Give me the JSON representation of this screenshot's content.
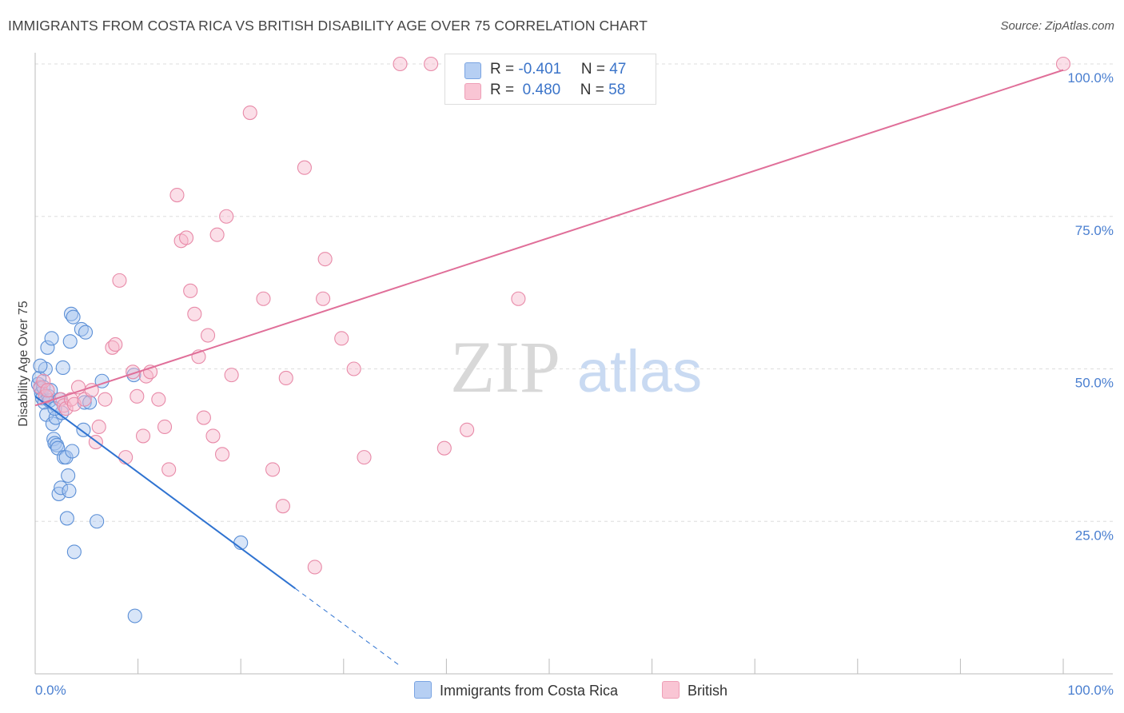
{
  "title": "IMMIGRANTS FROM COSTA RICA VS BRITISH DISABILITY AGE OVER 75 CORRELATION CHART",
  "source": "Source: ZipAtlas.com",
  "watermark": {
    "zip": "ZIP",
    "atlas": "atlas"
  },
  "legend_top": [
    {
      "r_label": "R = ",
      "r_value": "-0.401",
      "n_label": "N = ",
      "n_value": "47"
    },
    {
      "r_label": "R = ",
      "r_value": " 0.480",
      "n_label": "N = ",
      "n_value": "58"
    }
  ],
  "legend_bottom": [
    "Immigrants from Costa Rica",
    "British"
  ],
  "colors": {
    "blue_fill": "#a9c6f0",
    "blue_stroke": "#5b8fd6",
    "blue_line": "#2f73d1",
    "pink_fill": "#f6b8cb",
    "pink_stroke": "#e88aa8",
    "pink_line": "#e06f99",
    "tick_text": "#4a7fd0",
    "grid": "#dddddd"
  },
  "chart_data": {
    "type": "scatter",
    "title": "IMMIGRANTS FROM COSTA RICA VS BRITISH DISABILITY AGE OVER 75 CORRELATION CHART",
    "xlabel": "",
    "ylabel": "Disability Age Over 75",
    "xlim": [
      0,
      100
    ],
    "ylim": [
      0,
      100
    ],
    "x_tick_labels": [
      "0.0%",
      "100.0%"
    ],
    "y_tick_labels": [
      "25.0%",
      "50.0%",
      "75.0%",
      "100.0%"
    ],
    "y_ticks": [
      25,
      50,
      75,
      100
    ],
    "grid": true,
    "series": [
      {
        "name": "Immigrants from Costa Rica",
        "color": "blue",
        "R": -0.401,
        "N": 47,
        "trend": {
          "x0": 0,
          "y0": 45.5,
          "x1": 25.3,
          "y1": 14.0,
          "dash_to_x": 35.5
        },
        "points": [
          [
            0.3,
            47.5
          ],
          [
            0.4,
            48.5
          ],
          [
            0.5,
            46.8
          ],
          [
            0.6,
            46.0
          ],
          [
            0.7,
            45.2
          ],
          [
            0.8,
            47.0
          ],
          [
            0.9,
            44.5
          ],
          [
            1.0,
            50.0
          ],
          [
            1.1,
            42.5
          ],
          [
            1.2,
            53.5
          ],
          [
            1.3,
            45.5
          ],
          [
            1.4,
            44.8
          ],
          [
            1.5,
            46.5
          ],
          [
            1.6,
            55.0
          ],
          [
            1.7,
            41.0
          ],
          [
            1.8,
            38.5
          ],
          [
            1.9,
            37.8
          ],
          [
            2.0,
            42.0
          ],
          [
            2.1,
            37.5
          ],
          [
            2.2,
            37.0
          ],
          [
            2.3,
            29.5
          ],
          [
            2.4,
            45.0
          ],
          [
            2.5,
            30.5
          ],
          [
            2.6,
            42.8
          ],
          [
            2.7,
            50.2
          ],
          [
            2.8,
            35.5
          ],
          [
            3.0,
            35.5
          ],
          [
            3.1,
            25.5
          ],
          [
            3.2,
            32.5
          ],
          [
            3.3,
            30.0
          ],
          [
            3.4,
            54.5
          ],
          [
            3.5,
            59.0
          ],
          [
            3.6,
            36.5
          ],
          [
            3.7,
            58.5
          ],
          [
            3.8,
            20.0
          ],
          [
            4.5,
            56.5
          ],
          [
            4.7,
            40.0
          ],
          [
            4.8,
            44.5
          ],
          [
            4.9,
            56.0
          ],
          [
            5.3,
            44.5
          ],
          [
            6.0,
            25.0
          ],
          [
            6.5,
            48.0
          ],
          [
            9.6,
            49.0
          ],
          [
            9.7,
            9.5
          ],
          [
            20.0,
            21.5
          ],
          [
            0.5,
            50.5
          ],
          [
            1.9,
            43.5
          ]
        ]
      },
      {
        "name": "British",
        "color": "pink",
        "R": 0.48,
        "N": 58,
        "trend": {
          "x0": 0,
          "y0": 44.0,
          "x1": 100,
          "y1": 99.0
        },
        "points": [
          [
            0.5,
            47.0
          ],
          [
            0.8,
            48.0
          ],
          [
            1.0,
            45.5
          ],
          [
            1.2,
            46.5
          ],
          [
            2.5,
            45.0
          ],
          [
            2.8,
            44.0
          ],
          [
            3.0,
            43.5
          ],
          [
            3.5,
            45.0
          ],
          [
            3.8,
            44.2
          ],
          [
            4.2,
            47.0
          ],
          [
            4.8,
            45.0
          ],
          [
            5.5,
            46.5
          ],
          [
            5.9,
            38.0
          ],
          [
            6.2,
            40.5
          ],
          [
            6.8,
            45.0
          ],
          [
            7.5,
            53.5
          ],
          [
            7.8,
            54.0
          ],
          [
            8.2,
            64.5
          ],
          [
            8.8,
            35.5
          ],
          [
            9.5,
            49.5
          ],
          [
            9.9,
            45.5
          ],
          [
            10.5,
            39.0
          ],
          [
            10.8,
            48.8
          ],
          [
            11.2,
            49.5
          ],
          [
            12.0,
            45.0
          ],
          [
            12.6,
            40.5
          ],
          [
            13.0,
            33.5
          ],
          [
            13.8,
            78.5
          ],
          [
            14.2,
            71.0
          ],
          [
            14.7,
            71.5
          ],
          [
            15.1,
            62.8
          ],
          [
            15.5,
            59.0
          ],
          [
            15.9,
            52.0
          ],
          [
            16.4,
            42.0
          ],
          [
            16.8,
            55.5
          ],
          [
            17.3,
            39.0
          ],
          [
            17.7,
            72.0
          ],
          [
            18.2,
            36.0
          ],
          [
            18.6,
            75.0
          ],
          [
            19.1,
            49.0
          ],
          [
            20.9,
            92.0
          ],
          [
            22.2,
            61.5
          ],
          [
            23.1,
            33.5
          ],
          [
            24.1,
            27.5
          ],
          [
            24.4,
            48.5
          ],
          [
            26.2,
            83.0
          ],
          [
            27.2,
            17.5
          ],
          [
            28.0,
            61.5
          ],
          [
            28.2,
            68.0
          ],
          [
            29.8,
            55.0
          ],
          [
            31.0,
            50.0
          ],
          [
            32.0,
            35.5
          ],
          [
            35.5,
            100.0
          ],
          [
            38.5,
            100.0
          ],
          [
            39.8,
            37.0
          ],
          [
            42.0,
            40.0
          ],
          [
            47.0,
            61.5
          ],
          [
            100.0,
            100.0
          ]
        ]
      }
    ]
  }
}
